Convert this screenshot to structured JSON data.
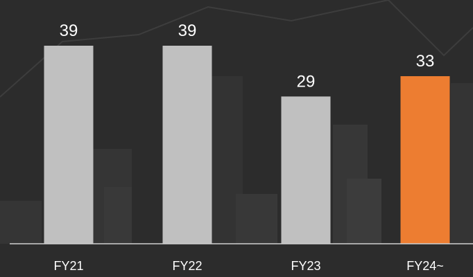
{
  "chart_data": {
    "type": "bar",
    "categories": [
      "FY21",
      "FY22",
      "FY23",
      "FY24~"
    ],
    "values": [
      39,
      39,
      29,
      33
    ],
    "data_labels": [
      "39",
      "39",
      "29",
      "33"
    ],
    "bar_colors": [
      "#c0c0c0",
      "#c0c0c0",
      "#c0c0c0",
      "#ed7d31"
    ],
    "ylim": [
      0,
      48
    ],
    "grid": false,
    "title": "",
    "xlabel": "",
    "ylabel": ""
  },
  "colors": {
    "background": "#2c2c2c",
    "axis_line": "#d0d0d0",
    "text": "#ffffff",
    "skyline": "#3a3a3a"
  }
}
